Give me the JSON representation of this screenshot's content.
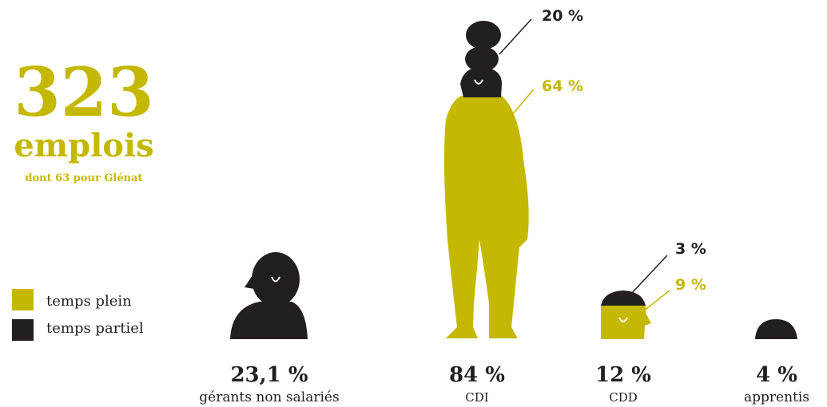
{
  "header": {
    "number": "323",
    "unit": "emplois",
    "note": "dont 63 pour Glénat"
  },
  "legend": [
    {
      "label": "temps plein",
      "color": "#c5b800"
    },
    {
      "label": "temps partiel",
      "color": "#231f20"
    }
  ],
  "figures": [
    {
      "value": "23,1 %",
      "label": "gérants non salariés",
      "callouts": []
    },
    {
      "value": "84 %",
      "label": "CDI",
      "callouts": [
        {
          "text": "20 %",
          "kind": "partiel"
        },
        {
          "text": "64 %",
          "kind": "plein"
        }
      ]
    },
    {
      "value": "12 %",
      "label": "CDD",
      "callouts": [
        {
          "text": "3 %",
          "kind": "partiel"
        },
        {
          "text": "9 %",
          "kind": "plein"
        }
      ]
    },
    {
      "value": "4 %",
      "label": "apprentis",
      "callouts": []
    }
  ]
}
